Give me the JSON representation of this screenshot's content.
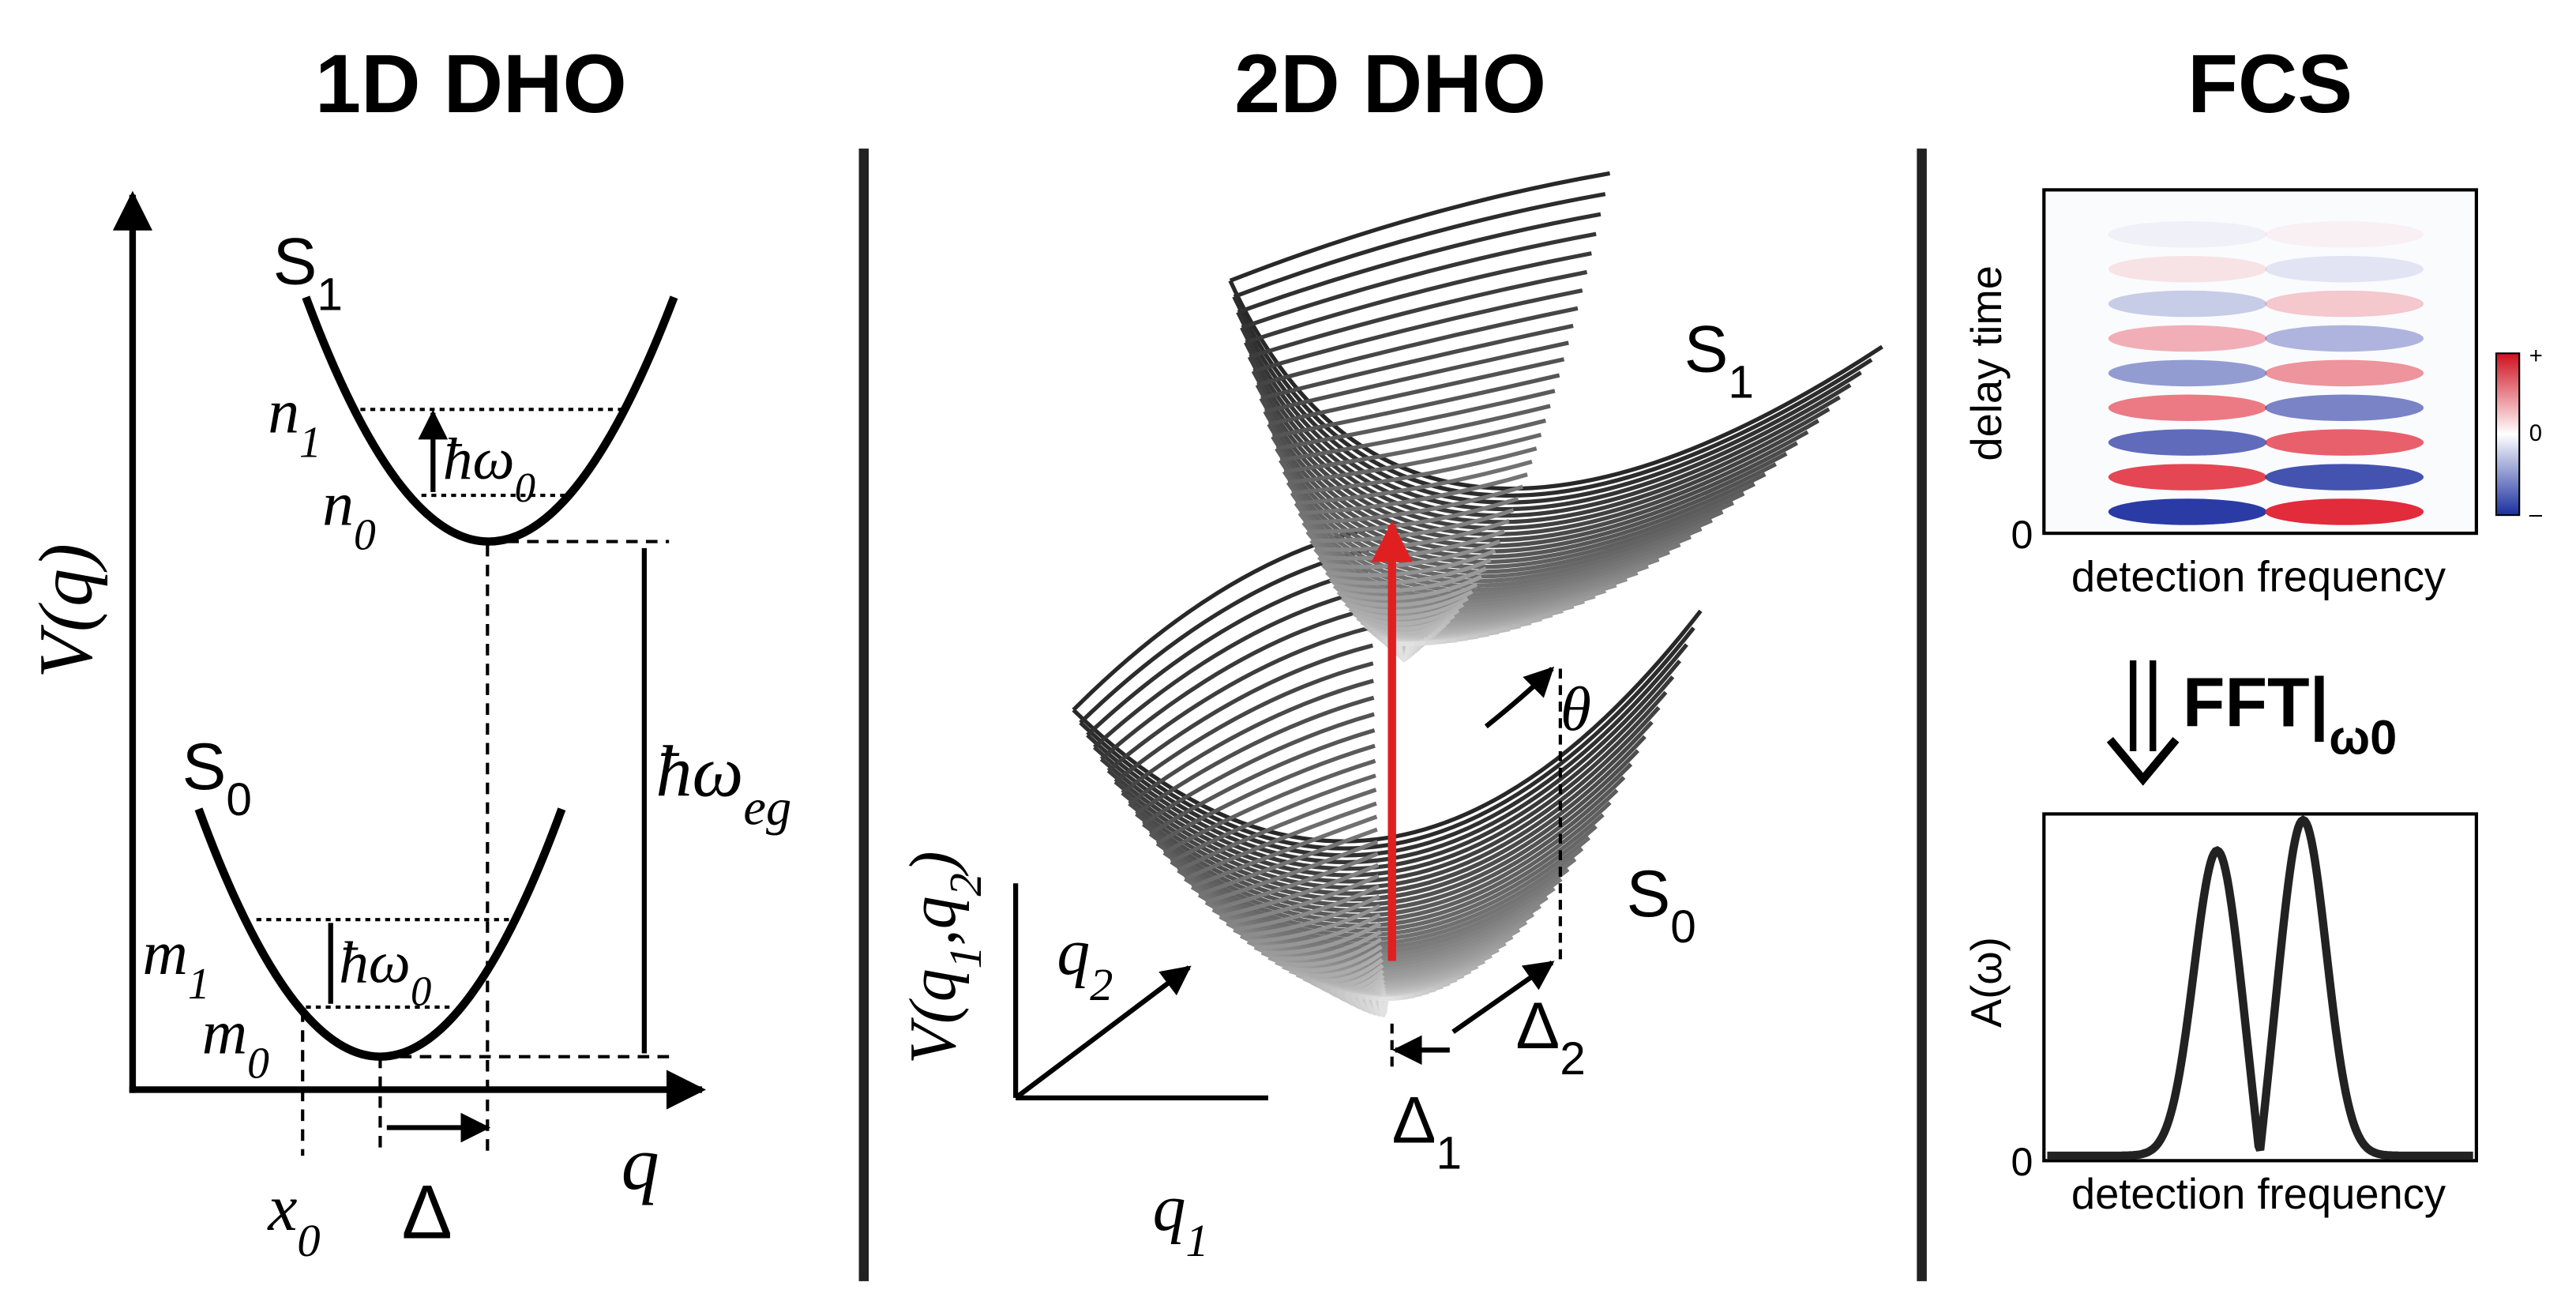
{
  "panel_1d": {
    "title": "1D DHO",
    "y_axis": [
      "V(q)"
    ],
    "x_axis": [
      "q"
    ],
    "s1": [
      "S",
      "1"
    ],
    "s0": [
      "S",
      "0"
    ],
    "n1": [
      "n",
      "1"
    ],
    "n0": [
      "n",
      "0"
    ],
    "spacing_s1": [
      "ħω",
      "0"
    ],
    "m1": [
      "m",
      "1"
    ],
    "m0": [
      "m",
      "0"
    ],
    "spacing_s0": [
      "ħω",
      "0"
    ],
    "gap": [
      "ħω",
      "eg"
    ],
    "x0": [
      "x",
      "0"
    ],
    "displacement": [
      "Δ"
    ]
  },
  "panel_2d": {
    "title": "2D DHO",
    "s1": [
      "S",
      "1"
    ],
    "s0": [
      "S",
      "0"
    ],
    "angle": [
      "θ"
    ],
    "z_axis": [
      "V(q",
      "1",
      ",q",
      "2",
      ")"
    ],
    "q2": [
      "q",
      "2"
    ],
    "q1": [
      "q",
      "1"
    ],
    "d1": [
      "Δ",
      "1"
    ],
    "d2": [
      "Δ",
      "2"
    ]
  },
  "panel_fcs": {
    "title": "FCS",
    "map_y": [
      "delay time"
    ],
    "map_y_zero": [
      "0"
    ],
    "map_x": [
      "detection frequency"
    ],
    "cbar_plus": [
      "+"
    ],
    "cbar_zero": [
      "0"
    ],
    "cbar_minus": [
      "–"
    ],
    "fft": [
      "FFT|",
      "ω0"
    ],
    "spectrum_y": [
      "A(ω)"
    ],
    "spectrum_y_zero": [
      "0"
    ],
    "spectrum_x": [
      "detection frequency"
    ]
  }
}
